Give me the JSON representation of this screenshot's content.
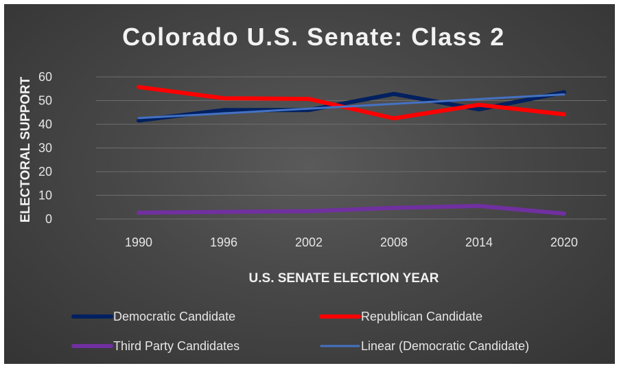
{
  "chart_data": {
    "type": "line",
    "title": "Colorado U.S. Senate: Class 2",
    "xlabel": "U.S. SENATE ELECTION YEAR",
    "ylabel": "ELECTORAL SUPPORT",
    "categories": [
      "1990",
      "1996",
      "2002",
      "2008",
      "2014",
      "2020"
    ],
    "ylim": [
      0,
      60
    ],
    "yticks": [
      "0",
      "10",
      "20",
      "30",
      "40",
      "50",
      "60"
    ],
    "grid": true,
    "legend_position": "bottom",
    "series": [
      {
        "name": "Democratic Candidate",
        "values": [
          41.6,
          46.0,
          46.0,
          52.8,
          46.3,
          53.5
        ],
        "color": "#002060",
        "style": "thick"
      },
      {
        "name": "Republican Candidate",
        "values": [
          55.7,
          51.0,
          50.7,
          42.5,
          48.2,
          44.2
        ],
        "color": "#ff0000",
        "style": "thick"
      },
      {
        "name": "Third Party Candidates",
        "values": [
          2.7,
          3.0,
          3.3,
          4.7,
          5.5,
          2.3
        ],
        "color": "#7030a0",
        "style": "thick"
      },
      {
        "name": "Linear (Democratic Candidate)",
        "values": [
          42.6,
          44.6,
          46.6,
          48.6,
          50.6,
          52.6
        ],
        "color": "#4472c4",
        "style": "thin"
      }
    ]
  }
}
